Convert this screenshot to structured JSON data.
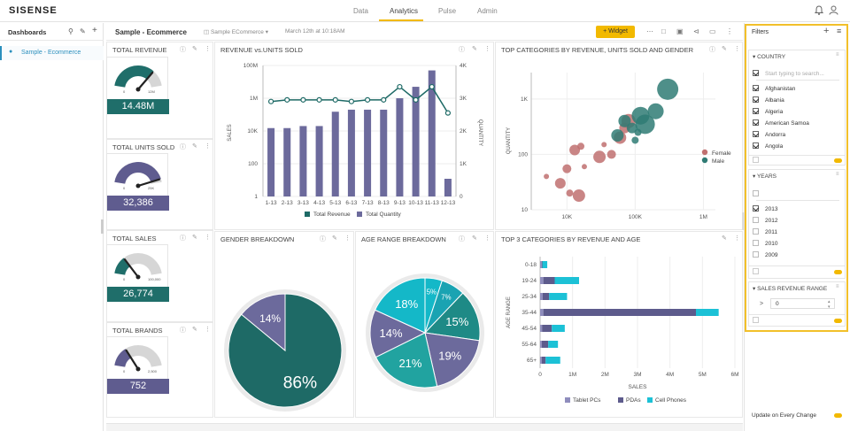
{
  "app": {
    "logo": "SISENSE"
  },
  "nav": {
    "items": [
      "Data",
      "Analytics",
      "Pulse",
      "Admin"
    ],
    "active": "Analytics"
  },
  "sidebar": {
    "title": "Dashboards",
    "items": [
      "Sample - Ecommerce"
    ]
  },
  "toolbar": {
    "dashboard_title": "Sample - Ecommerce",
    "datasource": "Sample ECommerce",
    "datasource_date": "March 12th at 10:18AM",
    "widget_button": "+ Widget"
  },
  "gauges": [
    {
      "title": "TOTAL REVENUE",
      "value_display": "14.48M",
      "min_label": "0",
      "max_label": "12M",
      "fill_fraction": 0.75,
      "color": "#1f6e6a"
    },
    {
      "title": "TOTAL UNITS SOLD",
      "value_display": "32,386",
      "min_label": "0",
      "max_label": "25K",
      "fill_fraction": 0.95,
      "color": "#5f5c8f"
    },
    {
      "title": "TOTAL SALES",
      "value_display": "26,774",
      "min_label": "0",
      "max_label": "100,000",
      "fill_fraction": 0.27,
      "color": "#1f6e6a"
    },
    {
      "title": "TOTAL BRANDS",
      "value_display": "752",
      "min_label": "0",
      "max_label": "2,500",
      "fill_fraction": 0.3,
      "color": "#5f5c8f"
    }
  ],
  "colors": {
    "teal": "#1e6a66",
    "purple": "#6c6a9c",
    "accent": "#f2b900",
    "cyan": "#14b8c8",
    "tablet": "#8f8dbd",
    "pda": "#5d5b8c",
    "cell": "#1cc1d6",
    "female": "#c07070",
    "male": "#2f7b74"
  },
  "chart_data": [
    {
      "type": "bar",
      "title": "REVENUE vs.UNITS SOLD",
      "categories": [
        "1-13",
        "2-13",
        "3-13",
        "4-13",
        "5-13",
        "6-13",
        "7-13",
        "8-13",
        "9-13",
        "10-13",
        "11-13",
        "12-13"
      ],
      "series": [
        {
          "name": "Total Revenue",
          "kind": "line",
          "axis": "right",
          "values": [
            2900,
            2950,
            2950,
            2950,
            2950,
            2900,
            2950,
            2950,
            3350,
            2950,
            3350,
            2550
          ]
        },
        {
          "name": "Total Quantity",
          "kind": "bar",
          "axis": "left",
          "values": [
            15000,
            15000,
            20000,
            20000,
            150000,
            200000,
            200000,
            200000,
            1000000,
            5000000,
            50000000,
            0
          ]
        }
      ],
      "ylabel": "SALES",
      "y2label": "QUANTITY",
      "yticks": [
        "1",
        "100",
        "10K",
        "1M",
        "100M"
      ],
      "y2ticks": [
        "0",
        "1K",
        "2K",
        "3K",
        "4K"
      ],
      "ylim": [
        1,
        100000000
      ],
      "y2lim": [
        0,
        4000
      ],
      "yscale": "log"
    },
    {
      "type": "scatter",
      "title": "TOP CATEGORIES BY REVENUE, UNITS SOLD AND GENDER",
      "xlabel": "",
      "ylabel": "QUANTITY",
      "xscale": "log",
      "yscale": "log",
      "xticks": [
        "10K",
        "100K",
        "1M"
      ],
      "yticks": [
        "10",
        "100",
        "1K"
      ],
      "xlim": [
        3000,
        1500000
      ],
      "ylim": [
        10,
        3000
      ],
      "series": [
        {
          "name": "Female",
          "points": [
            [
              5000,
              40
            ],
            [
              8000,
              30
            ],
            [
              11000,
              20
            ],
            [
              15000,
              18
            ],
            [
              10000,
              55
            ],
            [
              18000,
              60
            ],
            [
              13000,
              120
            ],
            [
              16000,
              140
            ],
            [
              30000,
              90
            ],
            [
              45000,
              100
            ],
            [
              35000,
              150
            ],
            [
              70000,
              300
            ],
            [
              80000,
              400
            ],
            [
              60000,
              200
            ]
          ]
        },
        {
          "name": "Male",
          "points": [
            [
              70000,
              400
            ],
            [
              90000,
              300
            ],
            [
              110000,
              250
            ],
            [
              140000,
              350
            ],
            [
              200000,
              600
            ],
            [
              300000,
              1500
            ],
            [
              120000,
              500
            ],
            [
              100000,
              180
            ],
            [
              55000,
              220
            ]
          ]
        }
      ]
    },
    {
      "type": "pie",
      "title": "GENDER BREAKDOWN",
      "labels": [
        "86%",
        "14%"
      ],
      "values": [
        86,
        14
      ],
      "colors": [
        "#1e6a66",
        "#6c6a9c"
      ]
    },
    {
      "type": "pie",
      "title": "AGE RANGE BREAKDOWN",
      "labels": [
        "5%",
        "7%",
        "15%",
        "19%",
        "21%",
        "14%",
        "18%"
      ],
      "values": [
        5,
        7,
        15,
        19,
        21,
        14,
        18
      ],
      "colors": [
        "#14b8c8",
        "#1aa3b2",
        "#1e8a86",
        "#6c6a9c",
        "#21a3a0",
        "#6c6a9c",
        "#14b8c8"
      ]
    },
    {
      "type": "bar",
      "orientation": "horizontal",
      "stacked": true,
      "title": "TOP 3 CATEGORIES BY REVENUE AND AGE",
      "categories": [
        "0-18",
        "19-24",
        "25-34",
        "35-44",
        "45-54",
        "55-64",
        "65+"
      ],
      "series": [
        {
          "name": "Tablet PCs",
          "values": [
            50000,
            100000,
            80000,
            100000,
            60000,
            50000,
            50000
          ]
        },
        {
          "name": "PDAs",
          "values": [
            20000,
            350000,
            200000,
            4700000,
            300000,
            200000,
            120000
          ]
        },
        {
          "name": "Cell Phones",
          "values": [
            150000,
            750000,
            550000,
            700000,
            400000,
            300000,
            450000
          ]
        }
      ],
      "xlabel": "SALES",
      "ylabel": "AGE RANGE",
      "xticks": [
        "0",
        "1M",
        "2M",
        "3M",
        "4M",
        "5M",
        "6M"
      ],
      "xlim": [
        0,
        6000000
      ]
    }
  ],
  "filters": {
    "title": "Filters",
    "country": {
      "title": "COUNTRY",
      "placeholder": "Start typing to search...",
      "items": [
        "Afghanistan",
        "Albania",
        "Algeria",
        "American Samoa",
        "Andorra",
        "Angola"
      ]
    },
    "years": {
      "title": "YEARS",
      "items": [
        "2013",
        "2012",
        "2011",
        "2010",
        "2009"
      ],
      "checked": [
        "2013"
      ]
    },
    "range": {
      "title": "SALES REVENUE RANGE",
      "operator": ">",
      "value": "0"
    },
    "footer": "Update on Every Change"
  }
}
